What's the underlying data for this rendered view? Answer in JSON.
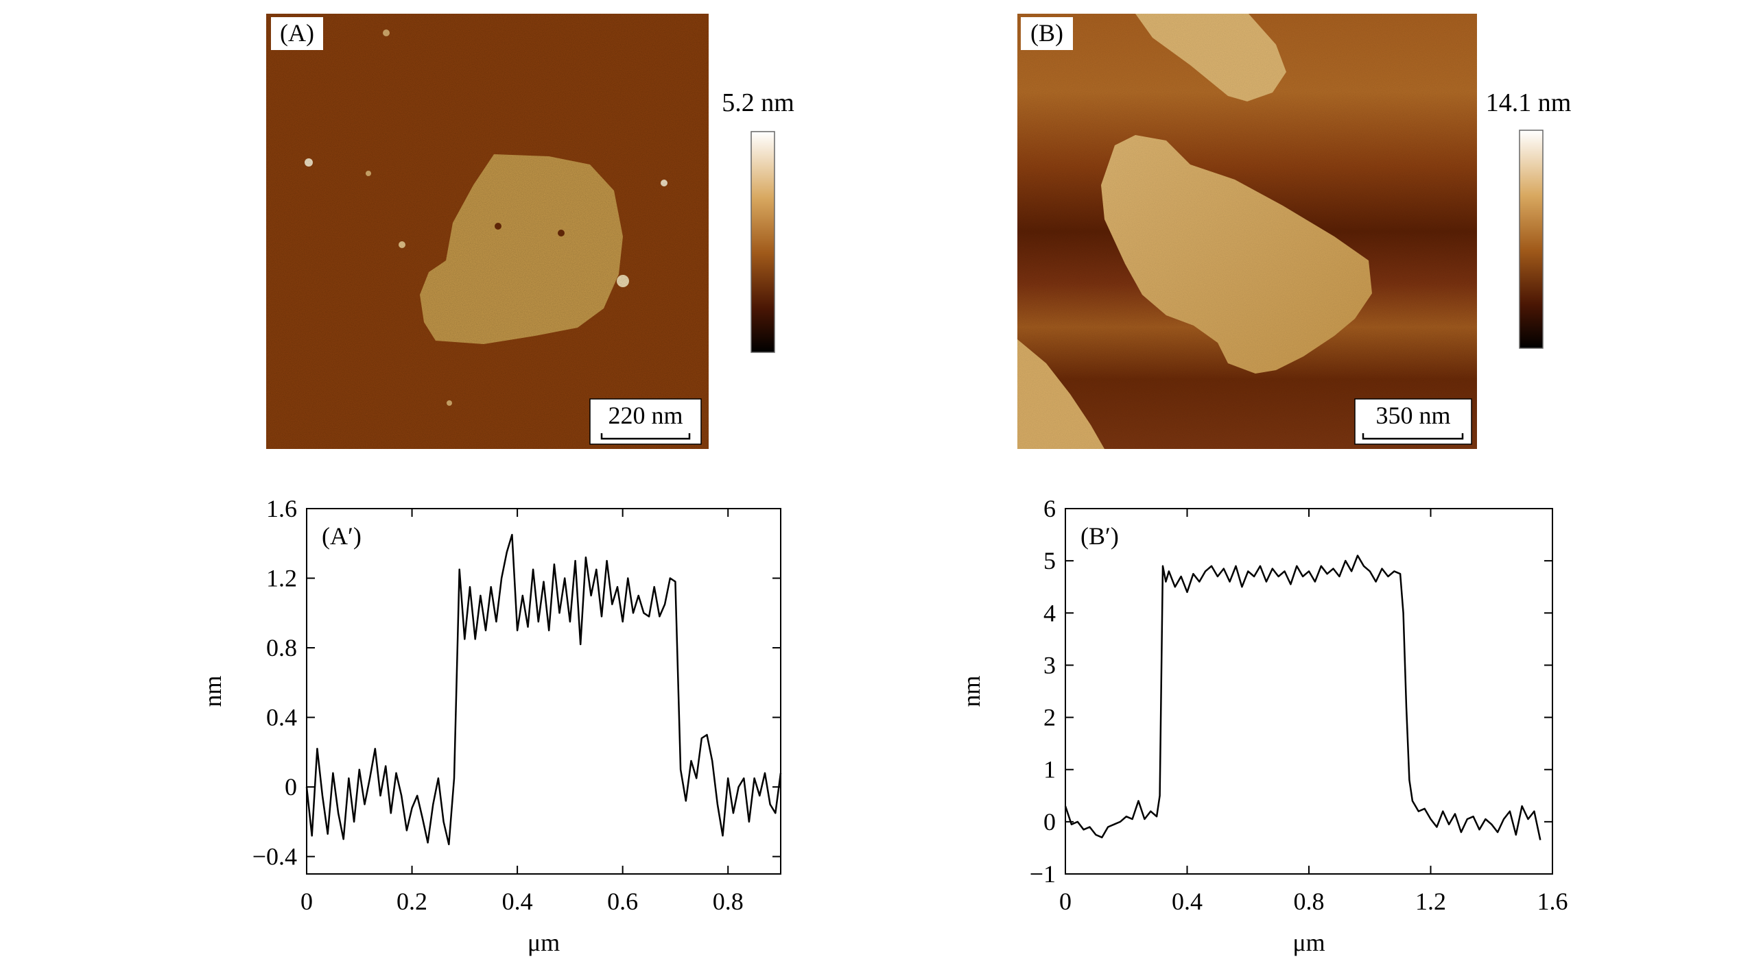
{
  "figure": {
    "panel_A": {
      "label": "(A)",
      "colorbar_max": "5.2 nm",
      "scale_bar": "220 nm",
      "image": "AFM height image: single flake on substrate"
    },
    "panel_B": {
      "label": "(B)",
      "colorbar_max": "14.1 nm",
      "scale_bar": "350 nm",
      "image": "AFM height image: several flakes on stepped substrate"
    },
    "colors": {
      "substrate_A": "#8a3f0c",
      "flake_A": "#c79a4a",
      "terrace_B_light": "#a85f1f",
      "terrace_B_dark": "#5b2106",
      "flake_B": "#d6aa62",
      "colorbar_top": "#ffffff",
      "colorbar_mid": "#a05a1a",
      "colorbar_bottom": "#000000",
      "line": "#000000"
    }
  },
  "chart_data": [
    {
      "type": "line",
      "panel_label": "(A′)",
      "xlabel": "μm",
      "ylabel": "nm",
      "xlim": [
        0,
        0.9
      ],
      "ylim": [
        -0.5,
        1.6
      ],
      "xticks": [
        0,
        0.2,
        0.4,
        0.6,
        0.8
      ],
      "xtick_labels": [
        "0",
        "0.2",
        "0.4",
        "0.6",
        "0.8"
      ],
      "yticks": [
        -0.4,
        0,
        0.4,
        0.8,
        1.2,
        1.6
      ],
      "ytick_labels": [
        "−0.4",
        "0",
        "0.4",
        "0.8",
        "1.2",
        "1.6"
      ],
      "series": [
        {
          "x": [
            0,
            0.01,
            0.02,
            0.03,
            0.04,
            0.05,
            0.06,
            0.07,
            0.08,
            0.09,
            0.1,
            0.11,
            0.12,
            0.13,
            0.14,
            0.15,
            0.16,
            0.17,
            0.18,
            0.19,
            0.2,
            0.21,
            0.22,
            0.23,
            0.24,
            0.25,
            0.26,
            0.27,
            0.28,
            0.29,
            0.3,
            0.31,
            0.32,
            0.33,
            0.34,
            0.35,
            0.36,
            0.37,
            0.38,
            0.39,
            0.4,
            0.41,
            0.42,
            0.43,
            0.44,
            0.45,
            0.46,
            0.47,
            0.48,
            0.49,
            0.5,
            0.51,
            0.52,
            0.53,
            0.54,
            0.55,
            0.56,
            0.57,
            0.58,
            0.59,
            0.6,
            0.61,
            0.62,
            0.63,
            0.64,
            0.65,
            0.66,
            0.67,
            0.68,
            0.69,
            0.7,
            0.71,
            0.72,
            0.73,
            0.74,
            0.75,
            0.76,
            0.77,
            0.78,
            0.79,
            0.8,
            0.81,
            0.82,
            0.83,
            0.84,
            0.85,
            0.86,
            0.87,
            0.88,
            0.89,
            0.9
          ],
          "y": [
            0.0,
            -0.28,
            0.22,
            -0.05,
            -0.27,
            0.08,
            -0.15,
            -0.3,
            0.05,
            -0.2,
            0.1,
            -0.1,
            0.05,
            0.22,
            -0.05,
            0.12,
            -0.15,
            0.08,
            -0.05,
            -0.25,
            -0.12,
            -0.05,
            -0.18,
            -0.32,
            -0.1,
            0.05,
            -0.2,
            -0.33,
            0.05,
            1.25,
            0.85,
            1.15,
            0.85,
            1.1,
            0.9,
            1.15,
            0.95,
            1.2,
            1.35,
            1.45,
            0.9,
            1.1,
            0.92,
            1.25,
            0.95,
            1.18,
            0.9,
            1.28,
            1.0,
            1.2,
            0.95,
            1.3,
            0.82,
            1.32,
            1.1,
            1.25,
            0.98,
            1.3,
            1.05,
            1.15,
            0.95,
            1.2,
            1.0,
            1.1,
            1.0,
            0.98,
            1.15,
            0.98,
            1.05,
            1.2,
            1.18,
            0.1,
            -0.08,
            0.15,
            0.05,
            0.28,
            0.3,
            0.15,
            -0.1,
            -0.28,
            0.05,
            -0.15,
            0.0,
            0.05,
            -0.2,
            0.05,
            -0.05,
            0.08,
            -0.1,
            -0.15,
            0.08
          ]
        }
      ]
    },
    {
      "type": "line",
      "panel_label": "(B′)",
      "xlabel": "μm",
      "ylabel": "nm",
      "xlim": [
        0,
        1.6
      ],
      "ylim": [
        -1,
        6
      ],
      "xticks": [
        0,
        0.4,
        0.8,
        1.2,
        1.6
      ],
      "xtick_labels": [
        "0",
        "0.4",
        "0.8",
        "1.2",
        "1.6"
      ],
      "yticks": [
        -1,
        0,
        1,
        2,
        3,
        4,
        5,
        6
      ],
      "ytick_labels": [
        "−1",
        "0",
        "1",
        "2",
        "3",
        "4",
        "5",
        "6"
      ],
      "series": [
        {
          "x": [
            0,
            0.02,
            0.04,
            0.06,
            0.08,
            0.1,
            0.12,
            0.14,
            0.16,
            0.18,
            0.2,
            0.22,
            0.24,
            0.26,
            0.28,
            0.3,
            0.31,
            0.32,
            0.33,
            0.34,
            0.36,
            0.38,
            0.4,
            0.42,
            0.44,
            0.46,
            0.48,
            0.5,
            0.52,
            0.54,
            0.56,
            0.58,
            0.6,
            0.62,
            0.64,
            0.66,
            0.68,
            0.7,
            0.72,
            0.74,
            0.76,
            0.78,
            0.8,
            0.82,
            0.84,
            0.86,
            0.88,
            0.9,
            0.92,
            0.94,
            0.96,
            0.98,
            1.0,
            1.02,
            1.04,
            1.06,
            1.08,
            1.1,
            1.11,
            1.12,
            1.13,
            1.14,
            1.16,
            1.18,
            1.2,
            1.22,
            1.24,
            1.26,
            1.28,
            1.3,
            1.32,
            1.34,
            1.36,
            1.38,
            1.4,
            1.42,
            1.44,
            1.46,
            1.48,
            1.5,
            1.52,
            1.54,
            1.56
          ],
          "y": [
            0.3,
            -0.05,
            0.0,
            -0.15,
            -0.1,
            -0.25,
            -0.3,
            -0.1,
            -0.05,
            0.0,
            0.1,
            0.05,
            0.4,
            0.05,
            0.2,
            0.1,
            0.5,
            4.9,
            4.6,
            4.8,
            4.5,
            4.7,
            4.4,
            4.75,
            4.6,
            4.8,
            4.9,
            4.7,
            4.85,
            4.6,
            4.9,
            4.5,
            4.8,
            4.7,
            4.9,
            4.6,
            4.85,
            4.7,
            4.8,
            4.55,
            4.9,
            4.7,
            4.8,
            4.6,
            4.9,
            4.75,
            4.85,
            4.7,
            5.0,
            4.8,
            5.1,
            4.9,
            4.8,
            4.6,
            4.85,
            4.7,
            4.8,
            4.75,
            4.0,
            2.2,
            0.8,
            0.4,
            0.2,
            0.25,
            0.05,
            -0.1,
            0.2,
            -0.05,
            0.15,
            -0.2,
            0.05,
            0.1,
            -0.15,
            0.05,
            -0.05,
            -0.2,
            0.05,
            0.2,
            -0.25,
            0.3,
            0.05,
            0.2,
            -0.35
          ]
        }
      ]
    }
  ]
}
